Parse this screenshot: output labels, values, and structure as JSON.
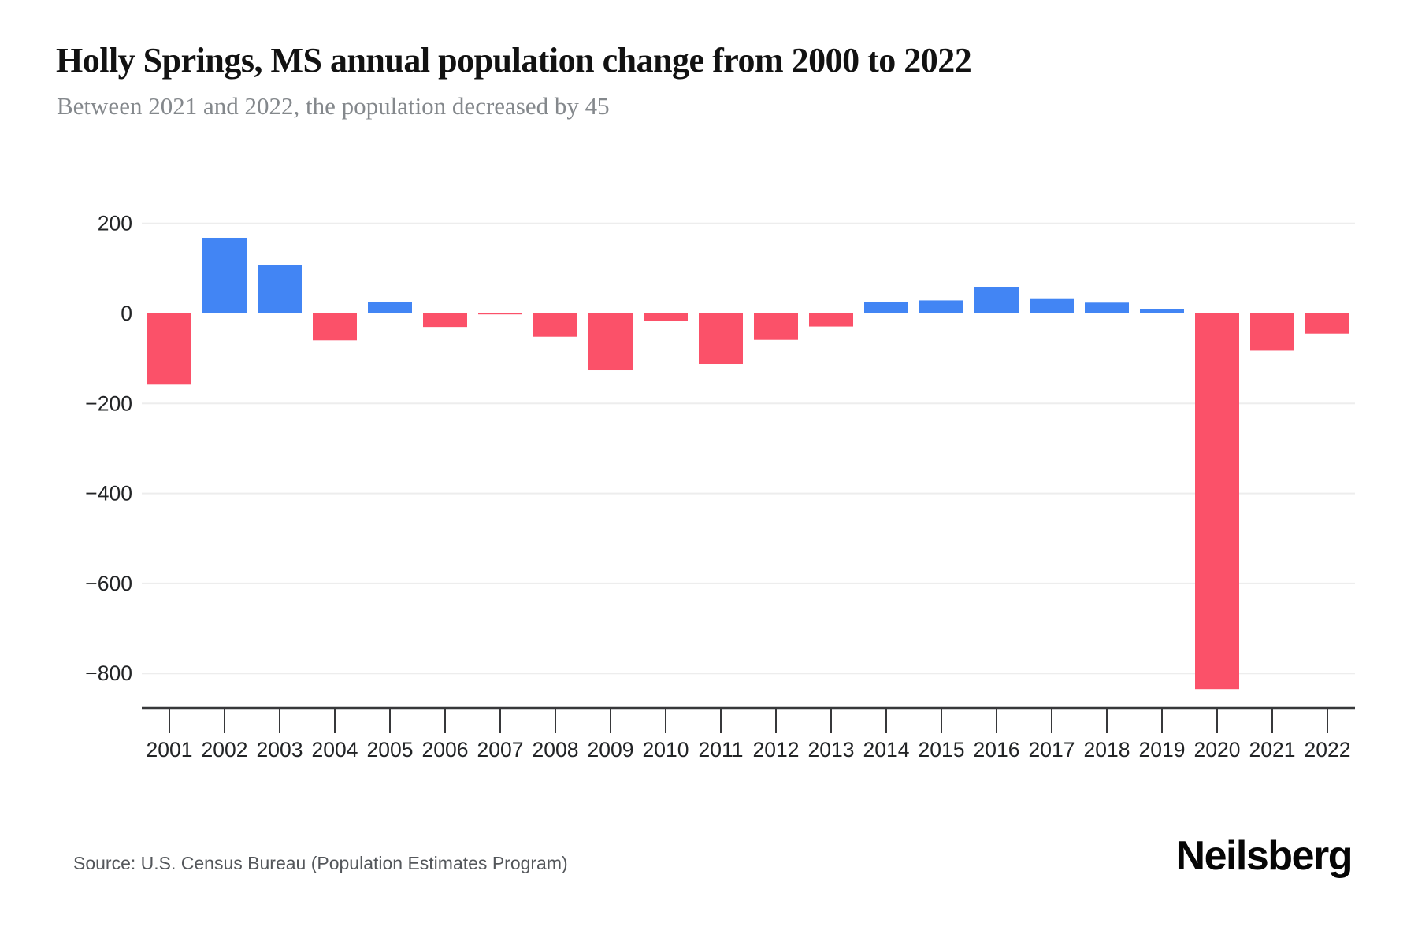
{
  "header": {
    "title": "Holly Springs, MS annual population change from 2000 to 2022",
    "subtitle": "Between 2021 and 2022, the population decreased by 45"
  },
  "chart_data": {
    "type": "bar",
    "title": "Holly Springs, MS annual population change from 2000 to 2022",
    "xlabel": "",
    "ylabel": "",
    "categories": [
      "2001",
      "2002",
      "2003",
      "2004",
      "2005",
      "2006",
      "2007",
      "2008",
      "2009",
      "2010",
      "2011",
      "2012",
      "2013",
      "2014",
      "2015",
      "2016",
      "2017",
      "2018",
      "2019",
      "2020",
      "2021",
      "2022"
    ],
    "values": [
      -158,
      168,
      108,
      -60,
      26,
      -30,
      -2,
      -52,
      -126,
      -17,
      -112,
      -59,
      -29,
      26,
      29,
      58,
      32,
      24,
      10,
      -835,
      -83,
      -45
    ],
    "y_ticks": [
      200,
      0,
      -200,
      -400,
      -600,
      -800
    ],
    "y_tick_labels": [
      "200",
      "0",
      "−200",
      "−400",
      "−600",
      "−800"
    ],
    "gridline_values": [
      200,
      -200,
      -400,
      -600,
      -800
    ],
    "ylim": [
      -880,
      300
    ],
    "grid": "horizontal-only",
    "legend": "none",
    "colors": {
      "positive": "#4285F4",
      "negative": "#FB5169",
      "gridline": "#ededed",
      "axis": "#37383a",
      "tick_text": "#222426"
    }
  },
  "footer": {
    "source": "Source: U.S. Census Bureau (Population Estimates Program)",
    "brand": "Neilsberg"
  }
}
